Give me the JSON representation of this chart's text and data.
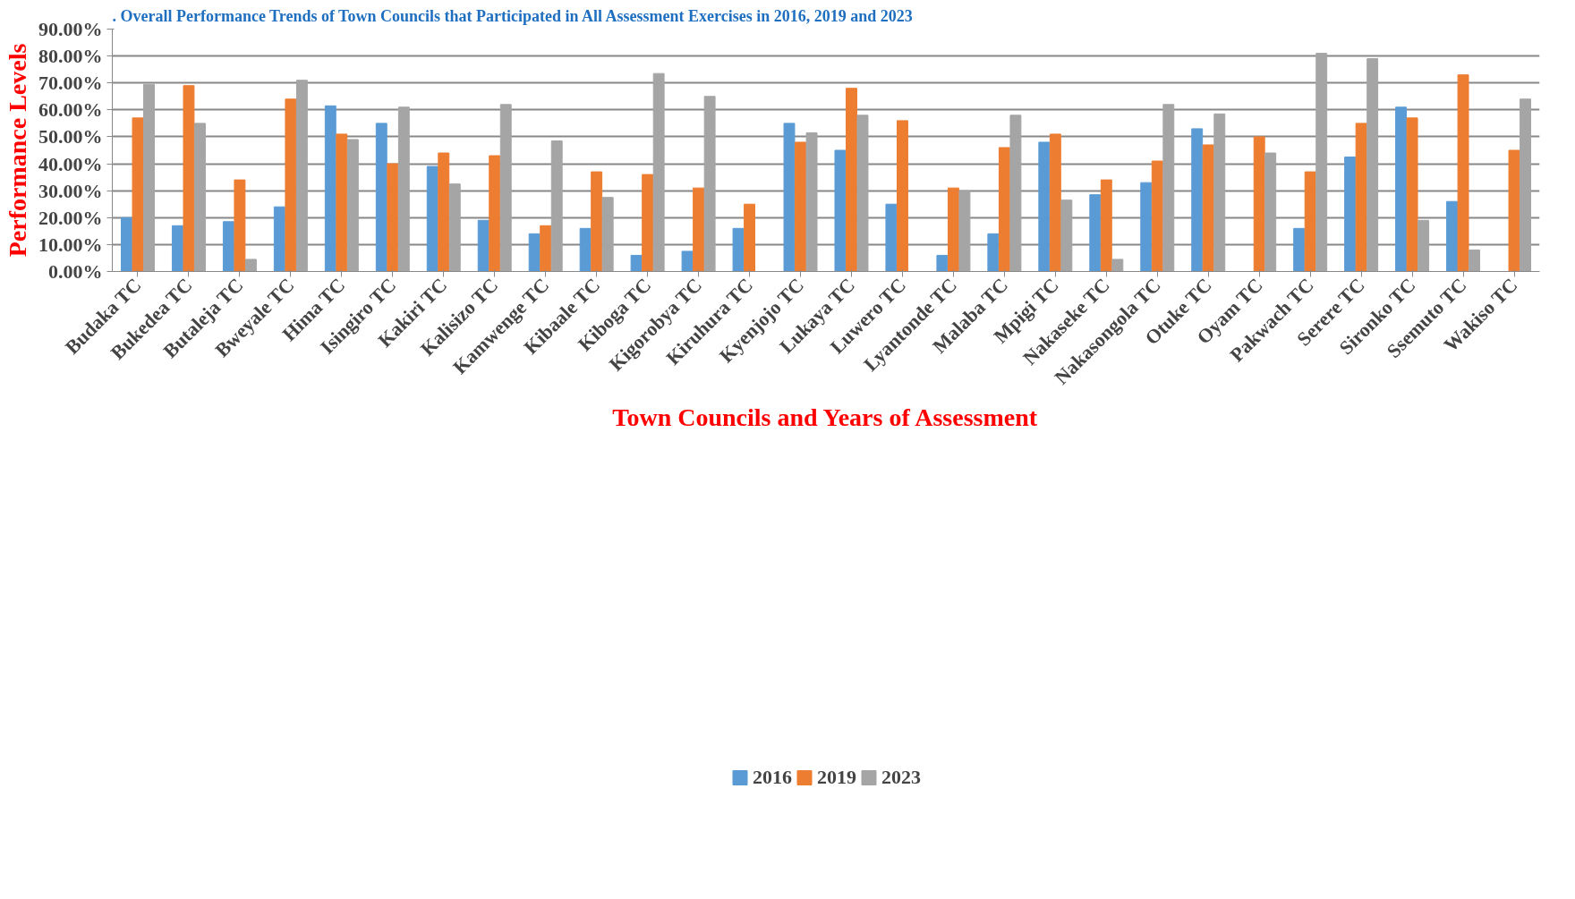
{
  "chart_data": {
    "type": "bar",
    "title": ". Overall Performance Trends of Town Councils that Participated in All Assessment Exercises in 2016, 2019 and 2023",
    "xlabel": "Town Councils and Years of Assessment",
    "ylabel": "Performance Levels",
    "categories": [
      "Budaka TC",
      "Bukedea TC",
      "Butaleja TC",
      "Bweyale TC",
      "Hima TC",
      "Isingiro TC",
      "Kakiri TC",
      "Kalisizo TC",
      "Kamwenge TC",
      "Kibaale TC",
      "Kiboga TC",
      "Kigorobya TC",
      "Kiruhura TC",
      "Kyenjojo TC",
      "Lukaya TC",
      "Luwero TC",
      "Lyantonde TC",
      "Malaba TC",
      "Mpigi TC",
      "Nakaseke TC",
      "Nakasongola TC",
      "Otuke TC",
      "Oyam TC",
      "Pakwach TC",
      "Serere TC",
      "Sironko TC",
      "Ssemuto TC",
      "Wakiso TC"
    ],
    "series": [
      {
        "name": "2016",
        "color": "#5b9bd5",
        "values": [
          20,
          17,
          18.5,
          24,
          61.5,
          55,
          39,
          19,
          14,
          16,
          6,
          7.5,
          16,
          55,
          45,
          25,
          6,
          14,
          48,
          28.5,
          33,
          53,
          0,
          16,
          42.5,
          61,
          26,
          0
        ]
      },
      {
        "name": "2019",
        "color": "#ed7d31",
        "values": [
          57,
          69,
          34,
          64,
          51,
          40,
          44,
          43,
          17,
          37,
          36,
          31,
          25,
          48,
          68,
          56,
          31,
          46,
          51,
          34,
          41,
          47,
          50,
          37,
          55,
          57,
          73,
          45
        ]
      },
      {
        "name": "2023",
        "color": "#a5a5a5",
        "values": [
          69.5,
          55,
          4.5,
          71,
          49,
          61,
          32.5,
          62,
          48.5,
          27.5,
          73.5,
          65,
          0,
          51.5,
          58,
          0,
          30,
          58,
          26.5,
          4.5,
          62,
          58.5,
          44,
          81,
          79,
          19,
          8,
          64
        ]
      }
    ],
    "ylim": [
      0,
      90
    ],
    "yticks": [
      {
        "value": 0,
        "label": "0.00%"
      },
      {
        "value": 10,
        "label": "10.00%"
      },
      {
        "value": 20,
        "label": "20.00%"
      },
      {
        "value": 30,
        "label": "30.00%"
      },
      {
        "value": 40,
        "label": "40.00%"
      },
      {
        "value": 50,
        "label": "50.00%"
      },
      {
        "value": 60,
        "label": "60.00%"
      },
      {
        "value": 70,
        "label": "70.00%"
      },
      {
        "value": 80,
        "label": "80.00%"
      },
      {
        "value": 90,
        "label": "90.00%"
      }
    ],
    "grid": "y",
    "legend": "bottom"
  }
}
